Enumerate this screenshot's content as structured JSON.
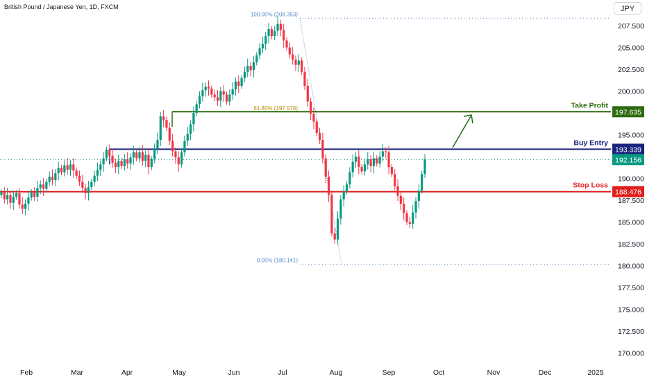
{
  "header": {
    "title": "British Pound / Japanese Yen, 1D, FXCM",
    "currency": "JPY"
  },
  "chart_data": {
    "type": "candlestick",
    "title": "British Pound / Japanese Yen, 1D, FXCM",
    "ylim": [
      169.5,
      211.0
    ],
    "y_ticks": [
      "207.500",
      "205.000",
      "202.500",
      "200.000",
      "197.500",
      "195.000",
      "192.500",
      "190.000",
      "187.500",
      "185.000",
      "182.500",
      "180.000",
      "177.500",
      "175.000",
      "172.500",
      "170.000"
    ],
    "x_ticks": [
      "Feb",
      "Mar",
      "Apr",
      "May",
      "Jun",
      "Jul",
      "Aug",
      "Sep",
      "Oct",
      "Nov",
      "Dec",
      "2025"
    ],
    "series": [
      {
        "name": "Take Profit",
        "value": 197.635,
        "color": "#2e6b10"
      },
      {
        "name": "Buy Entry",
        "value": 193.339,
        "color": "#1a237e"
      },
      {
        "name": "Stop Loss",
        "value": 188.476,
        "color": "#e01e1e"
      }
    ],
    "current_price": {
      "value": "192.156",
      "color": "#089981"
    },
    "fibonacci": [
      {
        "label": "100.00% (208.353)",
        "value": 208.353
      },
      {
        "label": "61.80% (197.576)",
        "value": 197.576
      },
      {
        "label": "0.00% (180.141)",
        "value": 180.141
      }
    ],
    "closes": [
      188.4,
      187.6,
      188.1,
      187.2,
      187.9,
      188.3,
      187.0,
      186.5,
      187.1,
      187.8,
      188.4,
      187.9,
      188.9,
      189.3,
      188.8,
      189.6,
      190.2,
      189.8,
      190.6,
      191.2,
      190.7,
      191.5,
      191.0,
      191.6,
      190.9,
      190.3,
      189.6,
      188.9,
      188.3,
      189.0,
      189.6,
      190.3,
      191.0,
      191.6,
      192.3,
      193.3,
      192.6,
      191.8,
      191.3,
      192.0,
      191.4,
      192.2,
      191.7,
      192.4,
      193.0,
      192.3,
      193.0,
      192.0,
      192.7,
      191.3,
      192.2,
      193.4,
      194.4,
      197.1,
      196.7,
      195.8,
      194.3,
      193.1,
      192.4,
      191.6,
      193.0,
      194.3,
      195.1,
      196.2,
      197.5,
      198.5,
      199.4,
      200.1,
      200.5,
      200.3,
      199.6,
      199.3,
      198.9,
      200.0,
      199.6,
      198.8,
      199.6,
      200.2,
      201.1,
      200.6,
      201.5,
      202.2,
      202.9,
      202.4,
      203.3,
      204.1,
      204.9,
      205.4,
      206.3,
      207.1,
      206.3,
      206.9,
      207.7,
      207.0,
      205.8,
      205.0,
      204.2,
      203.6,
      203.0,
      203.5,
      202.2,
      200.6,
      198.8,
      197.4,
      196.5,
      195.2,
      194.4,
      192.3,
      190.2,
      188.1,
      183.7,
      183.0,
      185.4,
      187.6,
      188.5,
      189.3,
      190.7,
      191.9,
      192.5,
      191.3,
      190.8,
      191.6,
      192.2,
      191.4,
      192.3,
      191.7,
      192.5,
      193.1,
      193.0,
      191.3,
      190.5,
      189.1,
      188.0,
      187.1,
      186.0,
      185.0,
      184.8,
      186.1,
      187.4,
      188.6,
      190.5,
      192.2
    ]
  }
}
